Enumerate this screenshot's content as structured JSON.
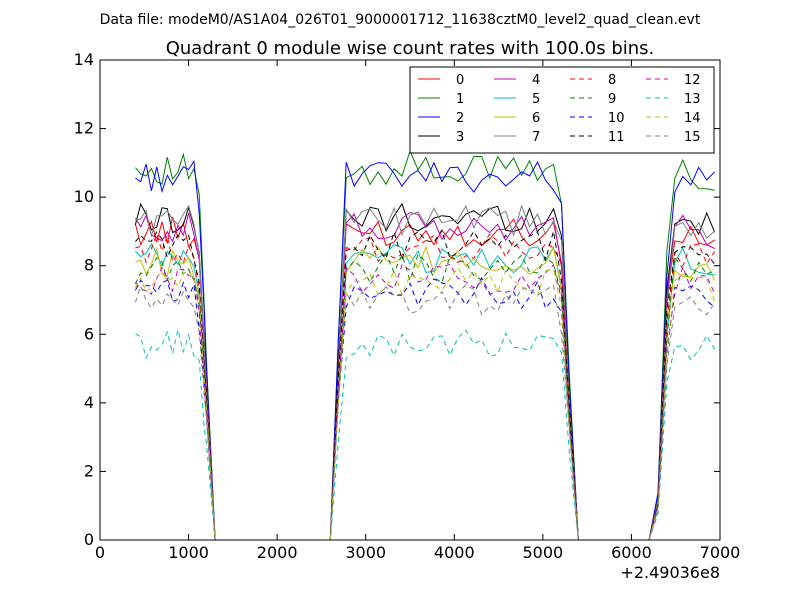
{
  "header": {
    "data_file": "Data file: modeM0/AS1A04_026T01_9000001712_11638cztM0_level2_quad_clean.evt"
  },
  "chart_data": {
    "type": "line",
    "title": "Quadrant 0 module wise count rates with 100.0s bins.",
    "xlabel": "",
    "ylabel": "",
    "x_offset_label": "+2.49036e8",
    "xlim": [
      0,
      7000
    ],
    "ylim": [
      0,
      14
    ],
    "xticks": [
      0,
      1000,
      2000,
      3000,
      4000,
      5000,
      6000,
      7000
    ],
    "yticks": [
      0,
      2,
      4,
      6,
      8,
      10,
      12,
      14
    ],
    "grid": false,
    "legend_position": "top-right",
    "legend_columns": 4,
    "segments": [
      {
        "x_start": 400,
        "x_step": 60,
        "count": 14
      },
      {
        "x_start": 1200,
        "x_step": 100,
        "count": 15
      },
      {
        "x_start": 2600,
        "x_step": 90,
        "count": 30
      },
      {
        "x_start": 5300,
        "x_step": 100,
        "count": 11
      },
      {
        "x_start": 6400,
        "x_step": 90,
        "count": 7
      }
    ],
    "series": [
      {
        "name": "0",
        "color": "#ff0000",
        "dash": "solid",
        "level": 9.0
      },
      {
        "name": "1",
        "color": "#008000",
        "dash": "solid",
        "level": 10.8
      },
      {
        "name": "2",
        "color": "#0000ff",
        "dash": "solid",
        "level": 10.6
      },
      {
        "name": "3",
        "color": "#000000",
        "dash": "solid",
        "level": 9.4
      },
      {
        "name": "4",
        "color": "#bf00bf",
        "dash": "solid",
        "level": 9.1
      },
      {
        "name": "5",
        "color": "#00bfbf",
        "dash": "solid",
        "level": 8.2
      },
      {
        "name": "6",
        "color": "#bfbf00",
        "dash": "solid",
        "level": 8.1
      },
      {
        "name": "7",
        "color": "#808080",
        "dash": "solid",
        "level": 9.3
      },
      {
        "name": "8",
        "color": "#ff0000",
        "dash": "dashed",
        "level": 8.5
      },
      {
        "name": "9",
        "color": "#008000",
        "dash": "dashed",
        "level": 7.9
      },
      {
        "name": "10",
        "color": "#0000ff",
        "dash": "dashed",
        "level": 7.2
      },
      {
        "name": "11",
        "color": "#000000",
        "dash": "dashed",
        "level": 8.6
      },
      {
        "name": "12",
        "color": "#bf00bf",
        "dash": "dashed",
        "level": 7.6
      },
      {
        "name": "13",
        "color": "#00bfbf",
        "dash": "dashed",
        "level": 5.7
      },
      {
        "name": "14",
        "color": "#bfbf00",
        "dash": "dashed",
        "level": 7.5
      },
      {
        "name": "15",
        "color": "#808080",
        "dash": "dashed",
        "level": 7.0
      }
    ]
  }
}
